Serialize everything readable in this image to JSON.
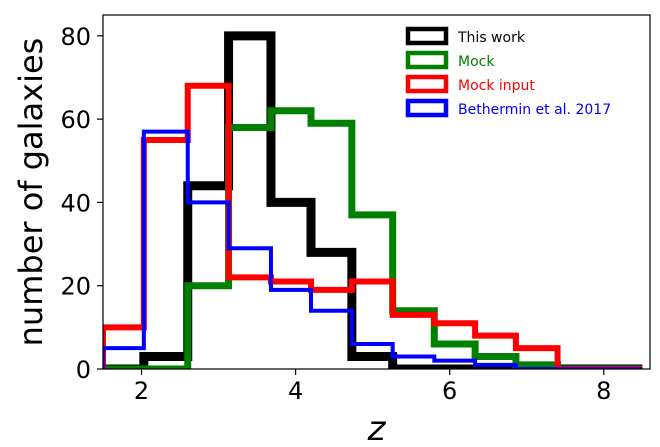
{
  "chart_data": {
    "type": "step-histogram",
    "xlabel": "z",
    "ylabel": "number of galaxies",
    "xlim": [
      1.5,
      8.6
    ],
    "ylim": [
      0,
      85
    ],
    "xticks": [
      2,
      4,
      6,
      8
    ],
    "xtick_labels": [
      "2",
      "4",
      "6",
      "8"
    ],
    "yticks": [
      0,
      20,
      40,
      60,
      80
    ],
    "ytick_labels": [
      "0",
      "20",
      "40",
      "60",
      "80"
    ],
    "grid": false,
    "legend_position": "top-right",
    "series": [
      {
        "name": "This work",
        "color": "#000000",
        "bin_edges": [
          1.5,
          2.03,
          2.6,
          3.13,
          3.68,
          4.2,
          4.73,
          5.26,
          5.8,
          6.33,
          6.86,
          7.4,
          7.93,
          8.5
        ],
        "counts": [
          0,
          3,
          44,
          80,
          40,
          28,
          3,
          0,
          0,
          0,
          0,
          0,
          0
        ]
      },
      {
        "name": "Mock",
        "color": "#008000",
        "bin_edges": [
          1.5,
          2.03,
          2.6,
          3.13,
          3.68,
          4.2,
          4.73,
          5.26,
          5.8,
          6.33,
          6.86,
          7.4,
          7.93,
          8.5
        ],
        "counts": [
          0,
          0,
          20,
          58,
          62,
          59,
          37,
          14,
          6,
          3,
          1,
          0,
          0
        ]
      },
      {
        "name": "Mock input",
        "color": "#ff0000",
        "bin_edges": [
          1.5,
          2.03,
          2.6,
          3.13,
          3.68,
          4.2,
          4.73,
          5.26,
          5.8,
          6.33,
          6.86,
          7.4,
          7.93,
          8.5
        ],
        "counts": [
          10,
          55,
          68,
          22,
          21,
          19,
          21,
          13,
          11,
          8,
          5,
          0,
          0
        ]
      },
      {
        "name": "Bethermin et al. 2017",
        "color": "#0000ff",
        "bin_edges": [
          1.5,
          2.03,
          2.6,
          3.13,
          3.68,
          4.2,
          4.73,
          5.26,
          5.8,
          6.33,
          6.86,
          7.4,
          7.93,
          8.5
        ],
        "counts": [
          5,
          57,
          40,
          29,
          19,
          14,
          6,
          3,
          2,
          1,
          0,
          0,
          0
        ]
      }
    ]
  }
}
